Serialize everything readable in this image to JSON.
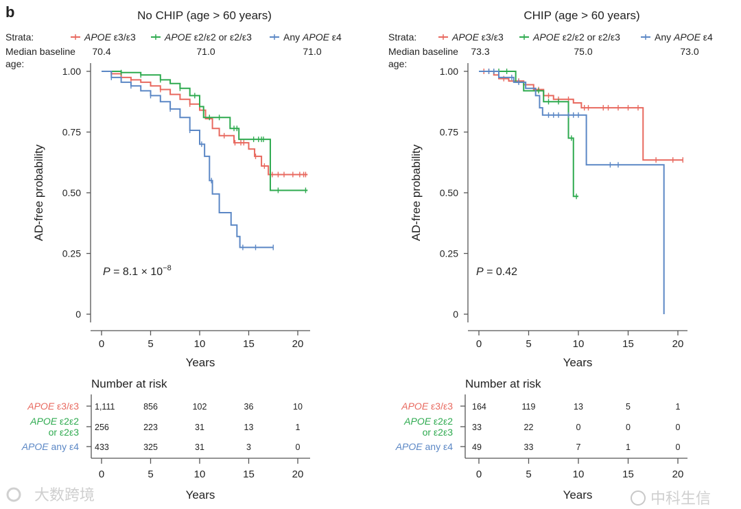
{
  "panel_letter": "b",
  "colors": {
    "e3e3": "#e8695f",
    "e2": "#2eaa4f",
    "e4": "#5b87c5"
  },
  "watermarks": [
    "大数跨境",
    "中科生信"
  ],
  "chart_data": [
    {
      "type": "line",
      "subtype": "kaplan-meier",
      "title": "No CHIP (age > 60 years)",
      "xlabel": "Years",
      "ylabel": "AD-free probability",
      "xlim": [
        -1,
        21
      ],
      "ylim": [
        0,
        1
      ],
      "xticks": [
        "0",
        "5",
        "10",
        "15",
        "20"
      ],
      "yticks": [
        "0",
        "0.25",
        "0.50",
        "0.75",
        "1.00"
      ],
      "strata_label": "Strata:",
      "median_label": "Median baseline",
      "median_label2": "age:",
      "p_value": {
        "label": "P",
        "text": " = 8.1 × 10",
        "exponent": "−8"
      },
      "series": [
        {
          "key": "e3e3",
          "prefix": "",
          "italic": "APOE",
          "suffix": " ε3/ε3",
          "median_age": "70.4",
          "steps": [
            [
              0,
              1
            ],
            [
              1,
              0.99
            ],
            [
              2,
              0.975
            ],
            [
              3,
              0.965
            ],
            [
              4,
              0.955
            ],
            [
              5,
              0.94
            ],
            [
              6,
              0.925
            ],
            [
              7,
              0.905
            ],
            [
              8,
              0.885
            ],
            [
              9,
              0.865
            ],
            [
              10,
              0.84
            ],
            [
              10.6,
              0.805
            ],
            [
              11.3,
              0.765
            ],
            [
              12,
              0.735
            ],
            [
              13.5,
              0.706
            ],
            [
              15,
              0.68
            ],
            [
              15.6,
              0.65
            ],
            [
              16.3,
              0.61
            ],
            [
              17,
              0.575
            ],
            [
              21,
              0.575
            ]
          ],
          "censors": [
            1,
            3,
            6,
            9,
            12.5,
            13.6,
            14.2,
            14.5,
            15.7,
            16.6,
            17.4,
            18,
            18.6,
            19.5,
            20.2,
            20.6,
            20.8
          ]
        },
        {
          "key": "e2",
          "prefix": "",
          "italic": "APOE",
          "suffix": " ε2/ε2 or ε2/ε3",
          "median_age": "71.0",
          "steps": [
            [
              0,
              1
            ],
            [
              2,
              0.995
            ],
            [
              4,
              0.985
            ],
            [
              6,
              0.965
            ],
            [
              7,
              0.95
            ],
            [
              8,
              0.93
            ],
            [
              9,
              0.9
            ],
            [
              10,
              0.855
            ],
            [
              10.4,
              0.81
            ],
            [
              13.1,
              0.765
            ],
            [
              14,
              0.72
            ],
            [
              17.2,
              0.51
            ],
            [
              21,
              0.51
            ]
          ],
          "censors": [
            2,
            4,
            6,
            8,
            9.5,
            11,
            12,
            13.5,
            13.8,
            15.5,
            16,
            16.3,
            16.5,
            18,
            20.8
          ]
        },
        {
          "key": "e4",
          "prefix": "Any ",
          "italic": "APOE",
          "suffix": " ε4",
          "median_age": "71.0",
          "steps": [
            [
              0,
              1
            ],
            [
              1,
              0.975
            ],
            [
              2,
              0.955
            ],
            [
              3,
              0.94
            ],
            [
              4,
              0.92
            ],
            [
              5,
              0.9
            ],
            [
              6,
              0.875
            ],
            [
              7,
              0.845
            ],
            [
              8,
              0.81
            ],
            [
              9,
              0.757
            ],
            [
              10,
              0.7
            ],
            [
              10.5,
              0.65
            ],
            [
              11,
              0.55
            ],
            [
              11.3,
              0.495
            ],
            [
              12,
              0.418
            ],
            [
              13.2,
              0.367
            ],
            [
              13.8,
              0.32
            ],
            [
              14.1,
              0.275
            ],
            [
              17.5,
              0.275
            ]
          ],
          "censors": [
            1,
            3,
            5,
            7,
            9,
            10.2,
            11.2,
            14.4,
            15.7,
            17.5
          ]
        }
      ],
      "risk_table": {
        "title": "Number at risk",
        "row_labels": [
          {
            "key": "e3e3",
            "lines": [
              [
                "APOE",
                " ε3/ε3"
              ]
            ]
          },
          {
            "key": "e2",
            "lines": [
              [
                "APOE",
                " ε2ε2"
              ],
              [
                "",
                "or ε2ε3"
              ]
            ]
          },
          {
            "key": "e4",
            "lines": [
              [
                "APOE",
                " any ε4"
              ]
            ]
          }
        ],
        "rows": [
          [
            "1,111",
            "856",
            "102",
            "36",
            "10"
          ],
          [
            "256",
            "223",
            "31",
            "13",
            "1"
          ],
          [
            "433",
            "325",
            "31",
            "3",
            "0"
          ]
        ],
        "xlabel": "Years"
      }
    },
    {
      "type": "line",
      "subtype": "kaplan-meier",
      "title": "CHIP (age > 60 years)",
      "xlabel": "Years",
      "ylabel": "AD-free probability",
      "xlim": [
        -1,
        21
      ],
      "ylim": [
        0,
        1
      ],
      "xticks": [
        "0",
        "5",
        "10",
        "15",
        "20"
      ],
      "yticks": [
        "0",
        "0.25",
        "0.50",
        "0.75",
        "1.00"
      ],
      "strata_label": "Strata:",
      "median_label": "Median baseline",
      "median_label2": "age:",
      "p_value": {
        "label": "P",
        "text": " = 0.42",
        "exponent": ""
      },
      "series": [
        {
          "key": "e3e3",
          "prefix": "",
          "italic": "APOE",
          "suffix": " ε3/ε3",
          "median_age": "73.3",
          "steps": [
            [
              0,
              1
            ],
            [
              1.5,
              0.985
            ],
            [
              2,
              0.97
            ],
            [
              3,
              0.96
            ],
            [
              4.5,
              0.945
            ],
            [
              5.5,
              0.925
            ],
            [
              6.5,
              0.9
            ],
            [
              7.5,
              0.885
            ],
            [
              9.5,
              0.87
            ],
            [
              10.3,
              0.85
            ],
            [
              16.5,
              0.635
            ],
            [
              20.5,
              0.635
            ]
          ],
          "censors": [
            0.5,
            1,
            2.5,
            4,
            6,
            7,
            8,
            9,
            10.6,
            11,
            12.5,
            13,
            14,
            15,
            16,
            17.8,
            19.5,
            20.5
          ]
        },
        {
          "key": "e2",
          "prefix": "",
          "italic": "APOE",
          "suffix": " ε2/ε2 or ε2/ε3",
          "median_age": "75.0",
          "steps": [
            [
              0,
              1
            ],
            [
              3.7,
              0.955
            ],
            [
              4.5,
              0.92
            ],
            [
              6.5,
              0.875
            ],
            [
              9,
              0.725
            ],
            [
              9.5,
              0.485
            ],
            [
              10,
              0.485
            ]
          ],
          "censors": [
            1.5,
            2,
            2.8,
            6,
            7,
            8,
            9.3,
            9.8
          ]
        },
        {
          "key": "e4",
          "prefix": "Any ",
          "italic": "APOE",
          "suffix": " ε4",
          "median_age": "73.0",
          "steps": [
            [
              0,
              1
            ],
            [
              2,
              0.975
            ],
            [
              3.5,
              0.955
            ],
            [
              4.7,
              0.93
            ],
            [
              5.7,
              0.9
            ],
            [
              6.1,
              0.85
            ],
            [
              6.4,
              0.82
            ],
            [
              10.8,
              0.615
            ],
            [
              18.6,
              0
            ],
            [
              18.6,
              0
            ]
          ],
          "censors": [
            1,
            1.5,
            3.3,
            4,
            7,
            7.5,
            8,
            9,
            9.5,
            10,
            13.2,
            14
          ]
        }
      ],
      "risk_table": {
        "title": "Number at risk",
        "row_labels": [
          {
            "key": "e3e3",
            "lines": [
              [
                "APOE",
                " ε3/ε3"
              ]
            ]
          },
          {
            "key": "e2",
            "lines": [
              [
                "APOE",
                " ε2ε2"
              ],
              [
                "",
                "or ε2ε3"
              ]
            ]
          },
          {
            "key": "e4",
            "lines": [
              [
                "APOE",
                " any ε4"
              ]
            ]
          }
        ],
        "rows": [
          [
            "164",
            "119",
            "13",
            "5",
            "1"
          ],
          [
            "33",
            "22",
            "0",
            "0",
            "0"
          ],
          [
            "49",
            "33",
            "7",
            "1",
            "0"
          ]
        ],
        "xlabel": "Years"
      }
    }
  ]
}
